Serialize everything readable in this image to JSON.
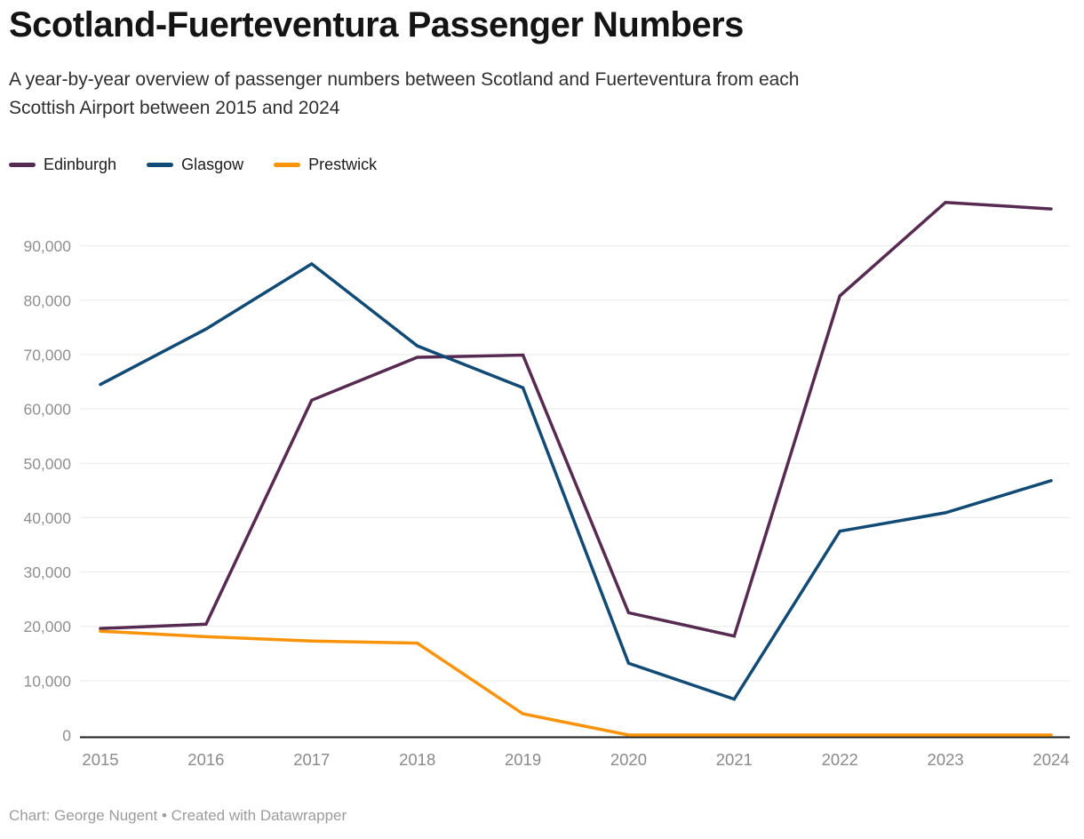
{
  "header": {
    "title": "Scotland-Fuerteventura Passenger Numbers",
    "subtitle": "A year-by-year overview of passenger numbers between Scotland and Fuerteventura from each Scottish Airport between 2015 and 2024"
  },
  "footer": {
    "credit": "Chart: George Nugent • Created with Datawrapper"
  },
  "colors": {
    "grid": "#e9e9e9",
    "axis": "#1a1a1a",
    "y_tick_label": "#909090",
    "x_tick_label": "#8a8a8a"
  },
  "chart_data": {
    "type": "line",
    "title": "Scotland-Fuerteventura Passenger Numbers",
    "xlabel": "",
    "ylabel": "",
    "x": [
      2015,
      2016,
      2017,
      2018,
      2019,
      2020,
      2021,
      2022,
      2023,
      2024
    ],
    "series": [
      {
        "name": "Edinburgh",
        "color": "#572a52",
        "values": [
          19600,
          20400,
          61600,
          69500,
          69900,
          22500,
          18200,
          80800,
          98000,
          96800
        ]
      },
      {
        "name": "Glasgow",
        "color": "#114b75",
        "values": [
          64500,
          74700,
          86700,
          71600,
          63900,
          13200,
          6600,
          37500,
          40900,
          46800
        ]
      },
      {
        "name": "Prestwick",
        "color": "#f7940b",
        "values": [
          19100,
          18100,
          17300,
          16900,
          3900,
          0,
          0,
          0,
          0,
          0
        ]
      }
    ],
    "ylim": [
      0,
      100000
    ],
    "yticks": [
      0,
      10000,
      20000,
      30000,
      40000,
      50000,
      60000,
      70000,
      80000,
      90000
    ],
    "grid": true,
    "legend_position": "top-left"
  }
}
